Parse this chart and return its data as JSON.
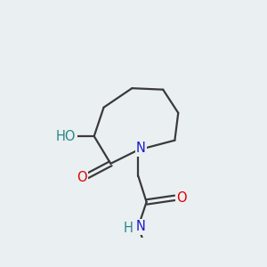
{
  "background_color": "#eaeff1",
  "bond_color": "#3a3a3a",
  "atom_colors": {
    "O": "#e00000",
    "N": "#1a1acc",
    "H_label": "#2a8888",
    "C": "#3a3a3a"
  },
  "font_size_atoms": 10.5,
  "font_size_small": 9.0,
  "line_width": 1.6
}
